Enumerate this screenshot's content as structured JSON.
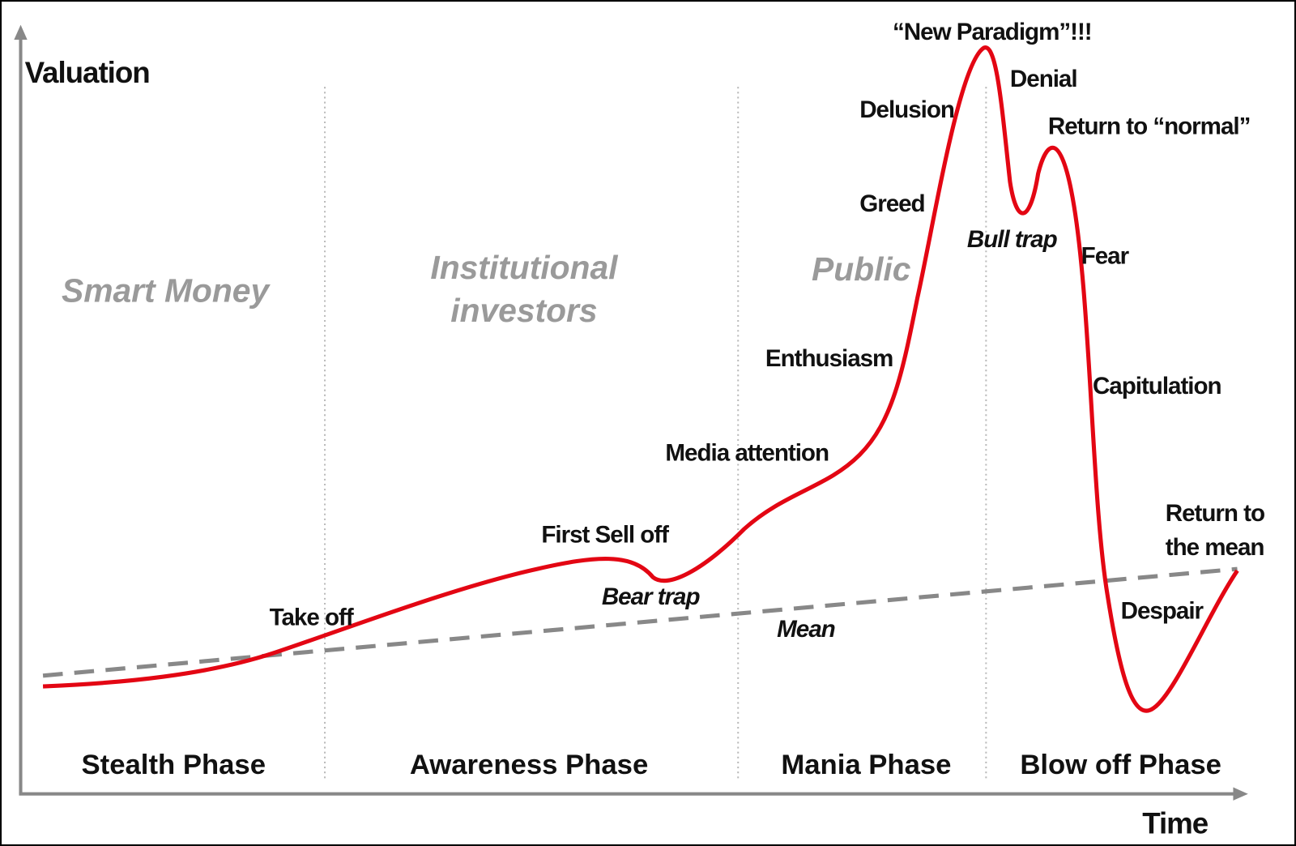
{
  "axes": {
    "y_label": "Valuation",
    "x_label": "Time"
  },
  "phases": [
    "Stealth Phase",
    "Awareness Phase",
    "Mania Phase",
    "Blow off Phase"
  ],
  "participants": [
    {
      "lines": [
        "Smart Money"
      ]
    },
    {
      "lines": [
        "Institutional",
        "investors"
      ]
    },
    {
      "lines": [
        "Public"
      ]
    }
  ],
  "annotations": {
    "take_off": "Take off",
    "first_sell_off": "First Sell off",
    "bear_trap": "Bear trap",
    "media_attention": "Media attention",
    "enthusiasm": "Enthusiasm",
    "greed": "Greed",
    "delusion": "Delusion",
    "new_paradigm": "“New Paradigm”!!!",
    "denial": "Denial",
    "return_to_normal": "Return to “normal”",
    "bull_trap": "Bull trap",
    "fear": "Fear",
    "capitulation": "Capitulation",
    "return_to_mean": [
      "Return to",
      "the mean"
    ],
    "despair": "Despair",
    "mean": "Mean"
  }
}
